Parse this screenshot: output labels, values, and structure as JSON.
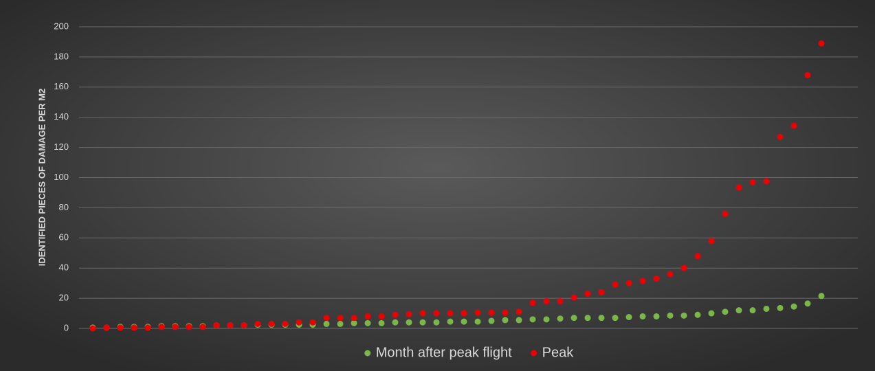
{
  "chart_data": {
    "type": "scatter",
    "y_label": "IDENTIFIED PIECES OF DAMAGE PER M2",
    "categories": [
      null,
      null,
      null,
      null,
      null,
      null,
      null,
      null,
      null,
      null,
      null,
      null,
      null,
      null,
      null,
      null,
      null,
      null,
      null,
      null,
      null,
      null,
      null,
      null,
      null,
      null,
      null,
      null,
      null,
      null,
      null,
      null,
      null,
      null,
      null,
      null,
      null,
      null,
      null,
      null,
      null,
      null,
      null,
      null,
      null,
      null,
      null,
      null,
      null,
      null,
      null,
      null,
      null,
      null
    ],
    "series": [
      {
        "name": "Month after peak flight",
        "color": "#7ab648",
        "values": [
          0.5,
          0.5,
          1,
          1,
          1,
          1.5,
          1.5,
          1.5,
          1.5,
          2,
          2,
          2,
          2.5,
          2.5,
          2.5,
          2.5,
          2.5,
          3,
          3,
          3.5,
          3.5,
          3.5,
          4,
          4,
          4,
          4,
          4.5,
          4.5,
          4.5,
          5,
          5.5,
          5.5,
          6,
          6,
          6.5,
          7,
          7,
          7,
          7,
          7.5,
          8,
          8,
          8.5,
          8.5,
          9,
          10,
          11,
          12,
          12,
          13,
          13.5,
          14.5,
          16.5,
          21.5
        ]
      },
      {
        "name": "Peak",
        "color": "#ee0000",
        "values": [
          0,
          0.5,
          0.5,
          0.5,
          0.5,
          1,
          1,
          1,
          1,
          2,
          2,
          2,
          3,
          3,
          3,
          4,
          4,
          7,
          7,
          7,
          8,
          8,
          9,
          9.5,
          10,
          10,
          10,
          10,
          10.5,
          10.5,
          10.5,
          11,
          17,
          18,
          18,
          20.5,
          23,
          24,
          29,
          30,
          31.5,
          33,
          36,
          40,
          48,
          58,
          76,
          93.5,
          97,
          97.5,
          127,
          134.5,
          168,
          189
        ]
      }
    ],
    "ylim": [
      0,
      200
    ],
    "yticks": [
      0,
      20,
      40,
      60,
      80,
      100,
      120,
      140,
      160,
      180,
      200
    ],
    "grid": true,
    "legend": "bottom"
  }
}
